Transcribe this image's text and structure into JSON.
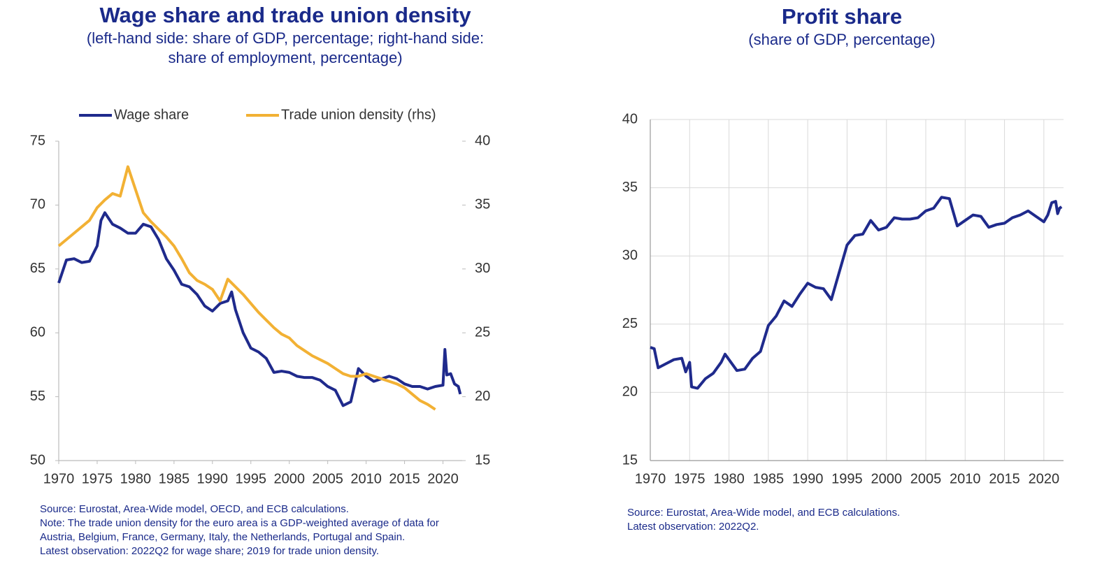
{
  "chart_data": [
    {
      "type": "line",
      "title": "Wage share and trade union density",
      "subtitle": [
        "(left-hand side: share of GDP, percentage; right-hand side:",
        "share of employment, percentage)"
      ],
      "notes": [
        "Source: Eurostat, Area-Wide model, OECD, and ECB calculations.",
        "Note: The trade union density for the euro area is a GDP-weighted average of data for",
        "Austria, Belgium, France, Germany, Italy, the Netherlands, Portugal and Spain.",
        "Latest observation: 2022Q2 for wage share; 2019 for trade union density."
      ],
      "legend": "top",
      "grid": false,
      "xlim": [
        1970,
        2022.5
      ],
      "xticks": [
        1970,
        1975,
        1980,
        1985,
        1990,
        1995,
        2000,
        2005,
        2010,
        2015,
        2020
      ],
      "ylim": [
        50,
        75
      ],
      "yticks": [
        50,
        55,
        60,
        65,
        70,
        75
      ],
      "y2lim": [
        15,
        40
      ],
      "y2ticks": [
        15,
        20,
        25,
        30,
        35,
        40
      ],
      "series": [
        {
          "name": "Wage share",
          "color": "#1f2a8c",
          "x": [
            1970,
            1971,
            1972,
            1973,
            1974,
            1975,
            1975.5,
            1976,
            1977,
            1978,
            1979,
            1980,
            1981,
            1982,
            1983,
            1984,
            1985,
            1986,
            1987,
            1988,
            1989,
            1990,
            1991,
            1992,
            1992.5,
            1993,
            1994,
            1995,
            1996,
            1997,
            1998,
            1999,
            2000,
            2001,
            2002,
            2003,
            2004,
            2005,
            2006,
            2007,
            2008,
            2009,
            2010,
            2011,
            2012,
            2013,
            2014,
            2015,
            2016,
            2017,
            2018,
            2019,
            2020,
            2020.25,
            2020.5,
            2021,
            2021.5,
            2022,
            2022.25
          ],
          "values": [
            63.9,
            65.7,
            65.8,
            65.5,
            65.6,
            66.8,
            68.8,
            69.4,
            68.5,
            68.2,
            67.8,
            67.8,
            68.5,
            68.3,
            67.3,
            65.8,
            64.9,
            63.8,
            63.6,
            63.0,
            62.1,
            61.7,
            62.3,
            62.5,
            63.2,
            61.8,
            60.0,
            58.8,
            58.5,
            58.0,
            56.9,
            57.0,
            56.9,
            56.6,
            56.5,
            56.5,
            56.3,
            55.8,
            55.5,
            54.3,
            54.6,
            57.2,
            56.6,
            56.2,
            56.4,
            56.6,
            56.4,
            56.0,
            55.8,
            55.8,
            55.6,
            55.8,
            55.9,
            58.7,
            56.7,
            56.8,
            56.0,
            55.8,
            55.2
          ]
        },
        {
          "name": "Trade union density (rhs)",
          "color": "#f2b134",
          "axis": "y2",
          "x": [
            1970,
            1972,
            1974,
            1975,
            1976,
            1977,
            1978,
            1979,
            1980,
            1981,
            1982,
            1983,
            1984,
            1985,
            1986,
            1987,
            1988,
            1989,
            1990,
            1991,
            1992,
            1993,
            1994,
            1995,
            1996,
            1997,
            1998,
            1999,
            2000,
            2001,
            2002,
            2003,
            2004,
            2005,
            2006,
            2007,
            2008,
            2009,
            2010,
            2011,
            2012,
            2013,
            2014,
            2015,
            2016,
            2017,
            2018,
            2019
          ],
          "values": [
            31.8,
            32.8,
            33.8,
            34.8,
            35.4,
            35.9,
            35.7,
            38.0,
            36.2,
            34.4,
            33.7,
            33.1,
            32.5,
            31.8,
            30.8,
            29.7,
            29.1,
            28.8,
            28.4,
            27.5,
            29.2,
            28.6,
            28.0,
            27.3,
            26.6,
            26.0,
            25.4,
            24.9,
            24.6,
            24.0,
            23.6,
            23.2,
            22.9,
            22.6,
            22.2,
            21.8,
            21.6,
            21.6,
            21.8,
            21.6,
            21.4,
            21.2,
            21.0,
            20.7,
            20.2,
            19.7,
            19.4,
            19.0
          ]
        }
      ]
    },
    {
      "type": "line",
      "title": "Profit share",
      "subtitle": [
        "(share of GDP, percentage)"
      ],
      "notes": [
        "Source: Eurostat, Area-Wide model, and ECB calculations.",
        "Latest observation: 2022Q2."
      ],
      "grid": true,
      "xlim": [
        1970,
        2022.5
      ],
      "xticks": [
        1970,
        1975,
        1980,
        1985,
        1990,
        1995,
        2000,
        2005,
        2010,
        2015,
        2020
      ],
      "ylim": [
        15,
        40
      ],
      "yticks": [
        15,
        20,
        25,
        30,
        35,
        40
      ],
      "series": [
        {
          "name": "Profit share",
          "color": "#1f2a8c",
          "x": [
            1970,
            1970.5,
            1971,
            1972,
            1973,
            1974,
            1974.5,
            1975,
            1975.25,
            1976,
            1977,
            1978,
            1979,
            1979.5,
            1980,
            1981,
            1982,
            1983,
            1984,
            1985,
            1986,
            1987,
            1988,
            1989,
            1990,
            1991,
            1992,
            1993,
            1994,
            1995,
            1996,
            1997,
            1998,
            1999,
            2000,
            2001,
            2002,
            2003,
            2004,
            2005,
            2006,
            2007,
            2008,
            2009,
            2010,
            2011,
            2012,
            2013,
            2014,
            2015,
            2016,
            2017,
            2018,
            2019,
            2020,
            2020.5,
            2021,
            2021.5,
            2021.75,
            2022,
            2022.25
          ],
          "values": [
            23.3,
            23.2,
            21.8,
            22.1,
            22.4,
            22.5,
            21.5,
            22.2,
            20.4,
            20.3,
            21.0,
            21.4,
            22.2,
            22.8,
            22.4,
            21.6,
            21.7,
            22.5,
            23.0,
            24.9,
            25.6,
            26.7,
            26.3,
            27.2,
            28.0,
            27.7,
            27.6,
            26.8,
            28.8,
            30.8,
            31.5,
            31.6,
            32.6,
            31.9,
            32.1,
            32.8,
            32.7,
            32.7,
            32.8,
            33.3,
            33.5,
            34.3,
            34.2,
            32.2,
            32.6,
            33.0,
            32.9,
            32.1,
            32.3,
            32.4,
            32.8,
            33.0,
            33.3,
            32.9,
            32.5,
            33.0,
            33.9,
            34.0,
            33.1,
            33.5,
            33.6
          ]
        }
      ]
    }
  ]
}
